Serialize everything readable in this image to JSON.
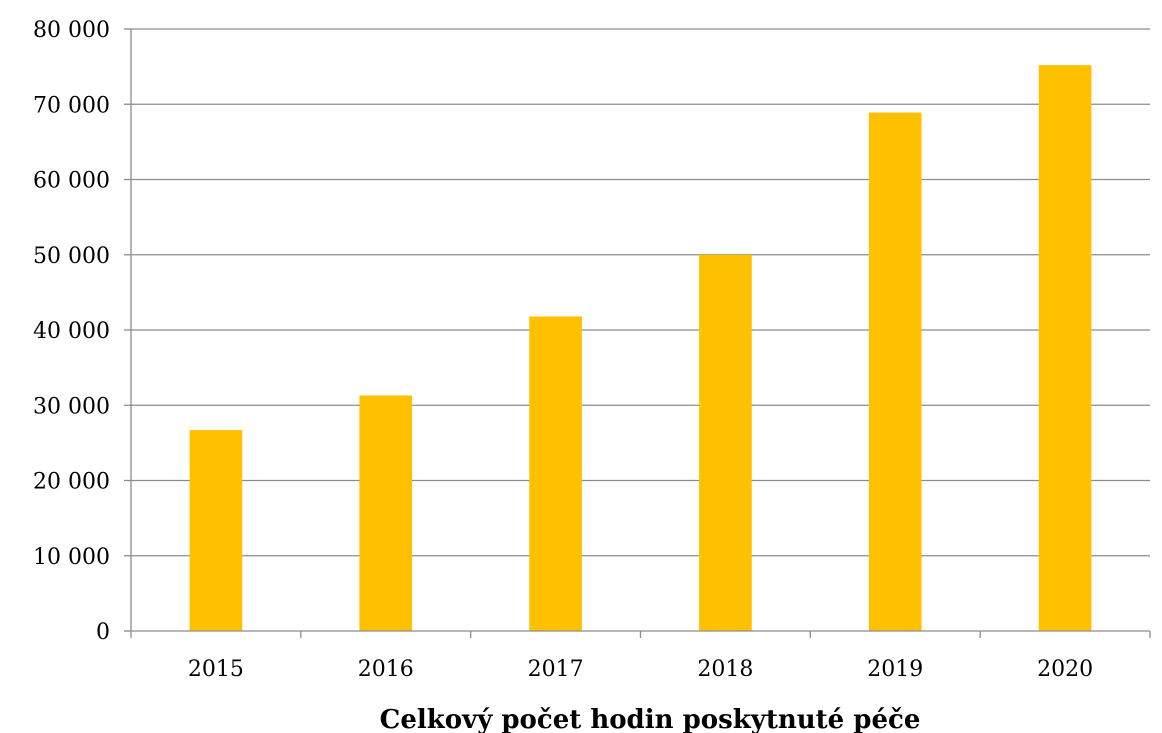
{
  "chart_data": {
    "type": "bar",
    "categories": [
      "2015",
      "2016",
      "2017",
      "2018",
      "2019",
      "2020"
    ],
    "values": [
      26700,
      31300,
      41800,
      50000,
      68900,
      75200
    ],
    "title": "",
    "xlabel": "Celkový počet hodin poskytnuté péče",
    "ylabel": "",
    "ylim": [
      0,
      80000
    ],
    "yticks": [
      0,
      10000,
      20000,
      30000,
      40000,
      50000,
      60000,
      70000,
      80000
    ],
    "ytick_labels": [
      "0",
      "10 000",
      "20 000",
      "30 000",
      "40 000",
      "50 000",
      "60 000",
      "70 000",
      "80 000"
    ],
    "grid": true,
    "legend": "none",
    "bar_color": "#FFC000",
    "grid_color": "#8C8C8C"
  }
}
